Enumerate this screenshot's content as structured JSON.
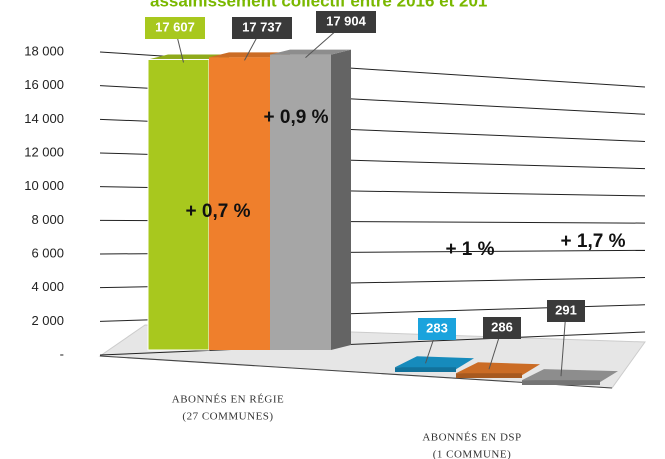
{
  "chart_data": {
    "type": "bar3d",
    "title": "assainissement collectif entre 2016 et 201",
    "categories": [
      [
        "ABONNÉS EN RÉGIE",
        "(27 COMMUNES)"
      ],
      [
        "ABONNÉS EN DSP",
        "(1 COMMUNE)"
      ]
    ],
    "series": [
      {
        "values": [
          17607,
          283
        ],
        "value_labels": [
          "17 607",
          "283"
        ],
        "colors": [
          "#a8c81e",
          "#1aa3dd"
        ]
      },
      {
        "values": [
          17737,
          286
        ],
        "value_labels": [
          "17 737",
          "286"
        ],
        "colors": [
          "#ef7f2c",
          "#ef7f2c"
        ]
      },
      {
        "values": [
          17904,
          291
        ],
        "value_labels": [
          "17 904",
          "291"
        ],
        "colors": [
          "#a6a6a6",
          "#a6a6a6"
        ]
      }
    ],
    "ylim": [
      0,
      18000
    ],
    "yticks": [
      {
        "value": 0,
        "label": "-"
      },
      {
        "value": 2000,
        "label": "2 000"
      },
      {
        "value": 4000,
        "label": "4 000"
      },
      {
        "value": 6000,
        "label": "6 000"
      },
      {
        "value": 8000,
        "label": "8 000"
      },
      {
        "value": 10000,
        "label": "10 000"
      },
      {
        "value": 12000,
        "label": "12 000"
      },
      {
        "value": 14000,
        "label": "14 000"
      },
      {
        "value": 16000,
        "label": "16 000"
      },
      {
        "value": 18000,
        "label": {
          "value": 18000,
          "label": "18 000"
        }
      }
    ],
    "grid": true,
    "annotations": [
      "+ 0,7 %",
      "+ 0,9 %",
      "+ 1 %",
      "+ 1,7 %"
    ]
  }
}
